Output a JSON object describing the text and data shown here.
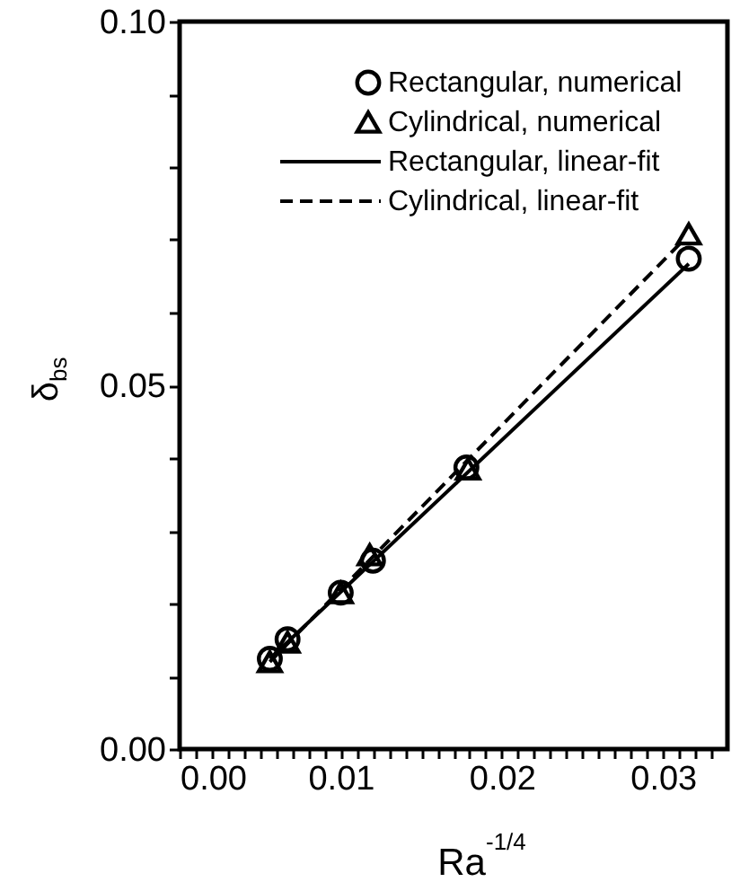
{
  "chart_data": {
    "type": "scatter",
    "xlabel": "Ra$^{-1/4}$",
    "ylabel": "δ$_{bs}$",
    "xlim": [
      0,
      0.034
    ],
    "ylim": [
      0,
      0.1
    ],
    "xticks": [
      {
        "value": 0,
        "label": "0.00"
      },
      {
        "value": 0.001,
        "label": null
      },
      {
        "value": 0.002,
        "label": null
      },
      {
        "value": 0.003,
        "label": null
      },
      {
        "value": 0.004,
        "label": null
      },
      {
        "value": 0.005,
        "label": null
      },
      {
        "value": 0.006,
        "label": null
      },
      {
        "value": 0.007,
        "label": null
      },
      {
        "value": 0.008,
        "label": null
      },
      {
        "value": 0.009,
        "label": null
      },
      {
        "value": 0.01,
        "label": "0.01"
      },
      {
        "value": 0.011,
        "label": null
      },
      {
        "value": 0.012,
        "label": null
      },
      {
        "value": 0.013,
        "label": null
      },
      {
        "value": 0.014,
        "label": null
      },
      {
        "value": 0.015,
        "label": null
      },
      {
        "value": 0.016,
        "label": null
      },
      {
        "value": 0.017,
        "label": null
      },
      {
        "value": 0.018,
        "label": null
      },
      {
        "value": 0.019,
        "label": null
      },
      {
        "value": 0.02,
        "label": "0.02"
      },
      {
        "value": 0.021,
        "label": null
      },
      {
        "value": 0.022,
        "label": null
      },
      {
        "value": 0.023,
        "label": null
      },
      {
        "value": 0.024,
        "label": null
      },
      {
        "value": 0.025,
        "label": null
      },
      {
        "value": 0.026,
        "label": null
      },
      {
        "value": 0.027,
        "label": null
      },
      {
        "value": 0.028,
        "label": null
      },
      {
        "value": 0.029,
        "label": null
      },
      {
        "value": 0.03,
        "label": "0.03"
      },
      {
        "value": 0.031,
        "label": null
      },
      {
        "value": 0.032,
        "label": null
      },
      {
        "value": 0.033,
        "label": null
      }
    ],
    "yticks": [
      {
        "value": 0,
        "label": "0.00"
      },
      {
        "value": 0.01,
        "label": null
      },
      {
        "value": 0.02,
        "label": null
      },
      {
        "value": 0.03,
        "label": null
      },
      {
        "value": 0.04,
        "label": null
      },
      {
        "value": 0.05,
        "label": "0.05"
      },
      {
        "value": 0.06,
        "label": null
      },
      {
        "value": 0.07,
        "label": null
      },
      {
        "value": 0.08,
        "label": null
      },
      {
        "value": 0.09,
        "label": null
      },
      {
        "value": 0.1,
        "label": "0.10"
      }
    ],
    "grid": false,
    "legend": "top right",
    "series": [
      {
        "name": "Rectangular, numerical",
        "marker": "circle",
        "color": "#000000",
        "x": [
          0.0056,
          0.0067,
          0.01,
          0.012,
          0.0178,
          0.0316
        ],
        "values": [
          0.0124,
          0.0151,
          0.0215,
          0.0259,
          0.0387,
          0.0674
        ]
      },
      {
        "name": "Cylindrical, numerical",
        "marker": "triangle",
        "color": "#000000",
        "x": [
          0.0056,
          0.0067,
          0.01,
          0.0118,
          0.0179,
          0.0316
        ],
        "values": [
          0.012,
          0.0147,
          0.0215,
          0.0267,
          0.0385,
          0.0708
        ]
      },
      {
        "name": "Rectangular, linear-fit",
        "type": "line",
        "line_style": "solid",
        "color": "#000000",
        "x": [
          0.0056,
          0.0316
        ],
        "values": [
          0.0124,
          0.0667
        ]
      },
      {
        "name": "Cylindrical, linear-fit",
        "type": "line",
        "line_style": "dashed",
        "color": "#000000",
        "x": [
          0.0056,
          0.0312
        ],
        "values": [
          0.012,
          0.0698
        ]
      }
    ]
  }
}
